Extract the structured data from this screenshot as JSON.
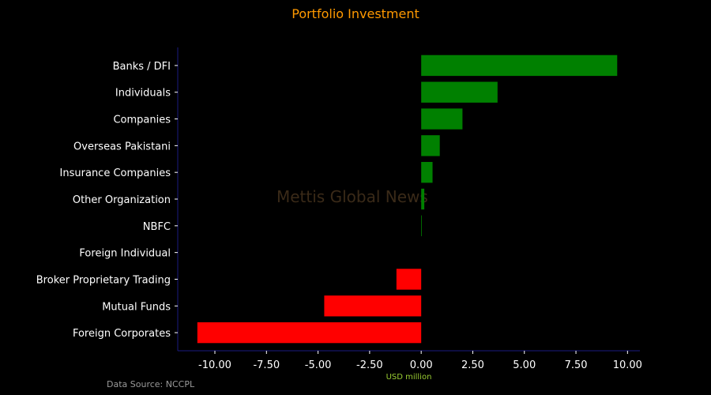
{
  "chart_data": {
    "type": "bar",
    "orientation": "horizontal",
    "title": "Portfolio Investment",
    "xlabel": "USD million",
    "ylabel": "",
    "categories": [
      "Banks / DFI",
      "Individuals",
      "Companies",
      "Overseas Pakistani",
      "Insurance Companies",
      "Other Organization",
      "NBFC",
      "Foreign Individual",
      "Broker Proprietary Trading",
      "Mutual Funds",
      "Foreign Corporates"
    ],
    "values": [
      9.5,
      3.7,
      2.0,
      0.9,
      0.55,
      0.15,
      0.02,
      0.0,
      -1.2,
      -4.7,
      -10.85
    ],
    "xlim": [
      -11.8,
      10.6
    ],
    "xticks": [
      "-10.00",
      "-7.50",
      "-5.00",
      "-2.50",
      "0.00",
      "2.50",
      "5.00",
      "7.50",
      "10.00"
    ],
    "xtick_values": [
      -10,
      -7.5,
      -5,
      -2.5,
      0,
      2.5,
      5,
      7.5,
      10
    ],
    "grid": false,
    "colors": {
      "positive": "#008000",
      "negative": "#ff0000",
      "axis": "#1a1a80",
      "text": "#ffffff",
      "title": "#ff9900",
      "xlabel": "#9acd32",
      "source": "#9a9a9a"
    }
  },
  "source_text": "Data Source: NCCPL",
  "watermark": "Mettis Global News"
}
